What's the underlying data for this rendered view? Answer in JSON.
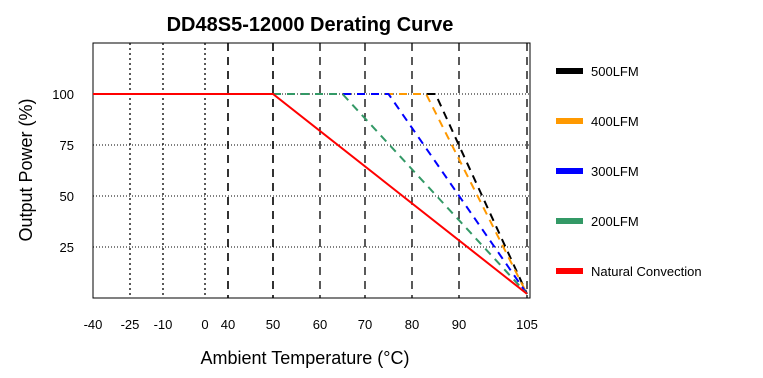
{
  "chart_data": {
    "type": "line",
    "title": "DD48S5-12000 Derating Curve",
    "xlabel": "Ambient Temperature (°C)",
    "ylabel": "Output Power (%)",
    "x_ticks": [
      "-40",
      "-25",
      "-10",
      "0",
      "40",
      "50",
      "60",
      "70",
      "80",
      "90",
      "105"
    ],
    "y_ticks": [
      "100",
      "75",
      "50",
      "25"
    ],
    "ylim": [
      0,
      125
    ],
    "grid": true,
    "legend_position": "right",
    "series": [
      {
        "name": "500LFM",
        "color": "#000000",
        "dashed": true,
        "points": [
          {
            "x": 50,
            "y": 100
          },
          {
            "x": 85,
            "y": 100
          },
          {
            "x": 105,
            "y": 2
          }
        ]
      },
      {
        "name": "400LFM",
        "color": "#ff9900",
        "dashed": true,
        "points": [
          {
            "x": 50,
            "y": 100
          },
          {
            "x": 83,
            "y": 100
          },
          {
            "x": 105,
            "y": 2
          }
        ]
      },
      {
        "name": "300LFM",
        "color": "#0000ff",
        "dashed": true,
        "points": [
          {
            "x": 50,
            "y": 100
          },
          {
            "x": 75,
            "y": 100
          },
          {
            "x": 105,
            "y": 2
          }
        ]
      },
      {
        "name": "200LFM",
        "color": "#339966",
        "dashed": true,
        "points": [
          {
            "x": 50,
            "y": 100
          },
          {
            "x": 65,
            "y": 100
          },
          {
            "x": 105,
            "y": 2
          }
        ]
      },
      {
        "name": "Natural Convection",
        "color": "#ff0000",
        "dashed": false,
        "points": [
          {
            "x": -40,
            "y": 100
          },
          {
            "x": 50,
            "y": 100
          },
          {
            "x": 105,
            "y": 2
          }
        ]
      }
    ]
  }
}
